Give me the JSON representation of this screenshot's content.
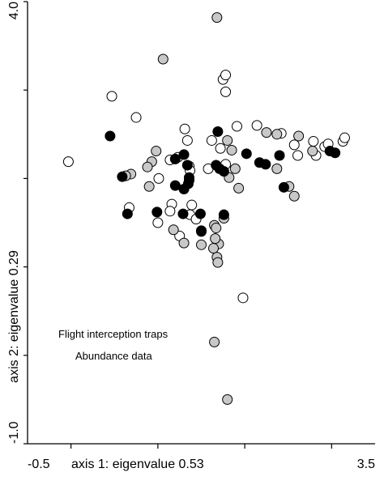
{
  "chart_data": {
    "type": "scatter",
    "title": "",
    "xlabel": "axis 1: eigenvalue 0.53",
    "ylabel": "axis 2: eigenvalue 0.29",
    "xlim": [
      -0.5,
      3.5
    ],
    "ylim": [
      -1.0,
      4.0
    ],
    "x_tick_labels": [
      "-0.5",
      "3.5"
    ],
    "y_tick_labels": [
      "4.0",
      "-1.0"
    ],
    "annotations": [
      "Flight interception traps",
      "Abundance data"
    ],
    "grid": false,
    "legend": "none",
    "colors": {
      "white": "#ffffff",
      "gray": "#c8c8c8",
      "black": "#000000",
      "stroke": "#000000"
    },
    "series": [
      {
        "fill": "white",
        "points": [
          [
            -0.03,
            2.19
          ],
          [
            0.47,
            2.93
          ],
          [
            0.75,
            2.69
          ],
          [
            1.75,
            3.12
          ],
          [
            1.78,
            3.17
          ],
          [
            1.78,
            2.98
          ],
          [
            1.31,
            2.56
          ],
          [
            1.34,
            2.43
          ],
          [
            1.62,
            2.43
          ],
          [
            1.72,
            2.34
          ],
          [
            1.78,
            2.16
          ],
          [
            1.23,
            2.24
          ],
          [
            1.14,
            2.21
          ],
          [
            1.36,
            2.14
          ],
          [
            1.37,
            2.09
          ],
          [
            1.58,
            2.11
          ],
          [
            1.91,
            2.59
          ],
          [
            2.14,
            2.6
          ],
          [
            1.01,
            2.0
          ],
          [
            1.16,
            1.71
          ],
          [
            0.67,
            1.67
          ],
          [
            1.39,
            1.7
          ],
          [
            1.37,
            1.59
          ],
          [
            1.44,
            1.54
          ],
          [
            1.14,
            1.63
          ],
          [
            1.0,
            1.5
          ],
          [
            1.25,
            1.35
          ],
          [
            2.42,
            2.51
          ],
          [
            2.57,
            2.38
          ],
          [
            2.79,
            2.42
          ],
          [
            2.92,
            2.36
          ],
          [
            2.96,
            2.39
          ],
          [
            3.13,
            2.42
          ],
          [
            3.15,
            2.46
          ],
          [
            2.61,
            2.26
          ],
          [
            2.82,
            2.26
          ],
          [
            1.98,
            0.65
          ]
        ]
      },
      {
        "fill": "gray",
        "points": [
          [
            1.68,
            3.82
          ],
          [
            1.06,
            3.35
          ],
          [
            0.98,
            2.31
          ],
          [
            0.93,
            2.19
          ],
          [
            0.88,
            2.13
          ],
          [
            0.69,
            2.05
          ],
          [
            0.63,
            2.03
          ],
          [
            0.9,
            1.91
          ],
          [
            1.8,
            2.43
          ],
          [
            1.85,
            2.32
          ],
          [
            1.89,
            2.11
          ],
          [
            1.82,
            2.01
          ],
          [
            1.93,
            1.89
          ],
          [
            2.25,
            2.52
          ],
          [
            2.37,
            2.5
          ],
          [
            2.62,
            2.48
          ],
          [
            2.78,
            2.31
          ],
          [
            2.37,
            2.11
          ],
          [
            2.51,
            1.91
          ],
          [
            2.57,
            1.8
          ],
          [
            1.76,
            1.55
          ],
          [
            1.65,
            1.47
          ],
          [
            1.67,
            1.44
          ],
          [
            1.18,
            1.42
          ],
          [
            1.7,
            1.26
          ],
          [
            1.3,
            1.27
          ],
          [
            1.66,
            1.32
          ],
          [
            1.64,
            1.21
          ],
          [
            1.68,
            1.11
          ],
          [
            1.69,
            1.05
          ],
          [
            1.5,
            1.25
          ],
          [
            1.65,
            0.15
          ],
          [
            1.8,
            -0.5
          ]
        ]
      },
      {
        "fill": "black",
        "points": [
          [
            0.45,
            2.48
          ],
          [
            0.59,
            2.02
          ],
          [
            1.2,
            2.22
          ],
          [
            1.3,
            2.27
          ],
          [
            1.34,
            2.15
          ],
          [
            1.36,
            2.01
          ],
          [
            1.36,
            1.98
          ],
          [
            1.35,
            1.94
          ],
          [
            1.2,
            1.92
          ],
          [
            1.3,
            1.88
          ],
          [
            1.69,
            2.53
          ],
          [
            1.67,
            2.15
          ],
          [
            1.71,
            2.11
          ],
          [
            1.76,
            2.08
          ],
          [
            2.02,
            2.28
          ],
          [
            2.17,
            2.18
          ],
          [
            2.24,
            2.16
          ],
          [
            2.4,
            2.26
          ],
          [
            2.98,
            2.31
          ],
          [
            3.04,
            2.29
          ],
          [
            2.45,
            1.9
          ],
          [
            0.65,
            1.6
          ],
          [
            0.99,
            1.62
          ],
          [
            1.49,
            1.6
          ],
          [
            1.76,
            1.59
          ],
          [
            1.5,
            1.41
          ],
          [
            1.5,
            1.4
          ],
          [
            1.29,
            1.6
          ]
        ]
      }
    ]
  }
}
